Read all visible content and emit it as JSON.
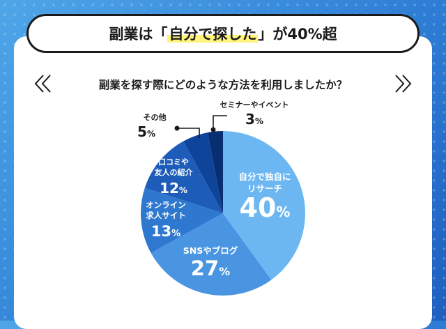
{
  "header": {
    "title_prefix": "副業は「",
    "title_highlight": "自分で探した",
    "title_suffix": "」が40%超"
  },
  "question": "副業を探す際にどのような方法を利用しましたか？",
  "chart_data": {
    "type": "pie",
    "slices": [
      {
        "label_lines": [
          "自分で独自に",
          "リサーチ"
        ],
        "value": 40,
        "unit": "%",
        "color": "#6cb7f2"
      },
      {
        "label_lines": [
          "SNSやブログ"
        ],
        "value": 27,
        "unit": "%",
        "color": "#4a95e2"
      },
      {
        "label_lines": [
          "オンライン",
          "求人サイト"
        ],
        "value": 13,
        "unit": "%",
        "color": "#2f78cf"
      },
      {
        "label_lines": [
          "口コミや",
          "友人の紹介"
        ],
        "value": 12,
        "unit": "%",
        "color": "#1d5cb8"
      },
      {
        "label_lines": [
          "その他"
        ],
        "value": 5,
        "unit": "%",
        "color": "#0e449a"
      },
      {
        "label_lines": [
          "セミナーやイベント"
        ],
        "value": 3,
        "unit": "%",
        "color": "#082f72"
      }
    ]
  }
}
